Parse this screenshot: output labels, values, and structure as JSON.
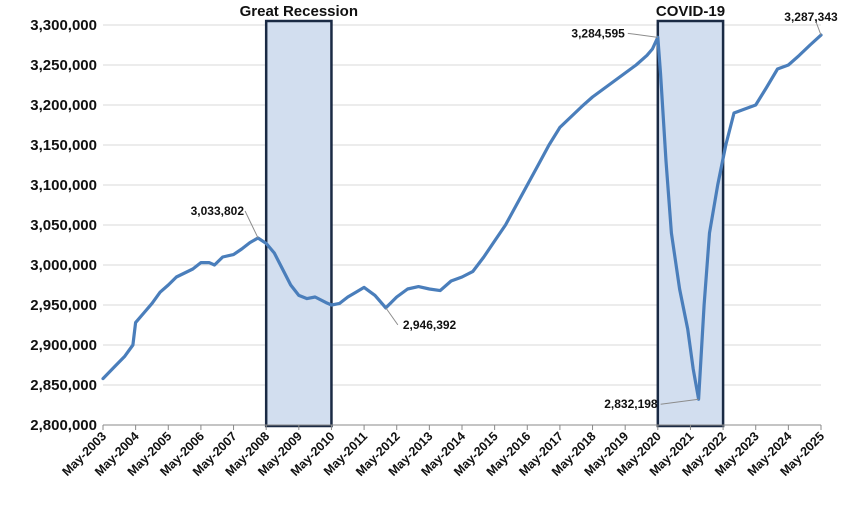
{
  "colors": {
    "line": "#4a7ebb",
    "region_fill": "#d2deef",
    "region_stroke": "#1a2a44",
    "grid": "#d9d9d9",
    "leader": "#8c8c8c"
  },
  "chart_data": {
    "type": "line",
    "title": "",
    "xlabel": "",
    "ylabel": "",
    "ylim": [
      2800000,
      3300000
    ],
    "y_ticks": [
      "2,800,000",
      "2,850,000",
      "2,900,000",
      "2,950,000",
      "3,000,000",
      "3,050,000",
      "3,100,000",
      "3,150,000",
      "3,200,000",
      "3,250,000",
      "3,300,000"
    ],
    "y_tick_values": [
      2800000,
      2850000,
      2900000,
      2950000,
      3000000,
      3050000,
      3100000,
      3150000,
      3200000,
      3250000,
      3300000
    ],
    "x_ticks": [
      "May-2003",
      "May-2004",
      "May-2005",
      "May-2006",
      "May-2007",
      "May-2008",
      "May-2009",
      "May-2010",
      "May-2011",
      "May-2012",
      "May-2013",
      "May-2014",
      "May-2015",
      "May-2016",
      "May-2017",
      "May-2018",
      "May-2019",
      "May-2020",
      "May-2021",
      "May-2022",
      "May-2023",
      "May-2024",
      "May-2025"
    ],
    "x_range": [
      "May-2003",
      "May-2025"
    ],
    "grid": "horizontal",
    "legend": "none",
    "series": [
      {
        "points": [
          [
            "2003-05",
            2858000
          ],
          [
            "2003-09",
            2872000
          ],
          [
            "2004-01",
            2886000
          ],
          [
            "2004-04",
            2900000
          ],
          [
            "2004-05",
            2928000
          ],
          [
            "2004-08",
            2940000
          ],
          [
            "2004-11",
            2952000
          ],
          [
            "2005-02",
            2966000
          ],
          [
            "2005-05",
            2975000
          ],
          [
            "2005-08",
            2985000
          ],
          [
            "2005-11",
            2990000
          ],
          [
            "2006-02",
            2995000
          ],
          [
            "2006-05",
            3003000
          ],
          [
            "2006-08",
            3003000
          ],
          [
            "2006-10",
            3000000
          ],
          [
            "2007-01",
            3010000
          ],
          [
            "2007-05",
            3013000
          ],
          [
            "2007-08",
            3020000
          ],
          [
            "2007-11",
            3028000
          ],
          [
            "2008-02",
            3033802
          ],
          [
            "2008-05",
            3027000
          ],
          [
            "2008-08",
            3015000
          ],
          [
            "2008-11",
            2995000
          ],
          [
            "2009-02",
            2975000
          ],
          [
            "2009-05",
            2962000
          ],
          [
            "2009-08",
            2958000
          ],
          [
            "2009-11",
            2960000
          ],
          [
            "2010-03",
            2953000
          ],
          [
            "2010-05",
            2950000
          ],
          [
            "2010-08",
            2952000
          ],
          [
            "2010-11",
            2960000
          ],
          [
            "2011-02",
            2966000
          ],
          [
            "2011-05",
            2972000
          ],
          [
            "2011-09",
            2962000
          ],
          [
            "2012-01",
            2946392
          ],
          [
            "2012-05",
            2960000
          ],
          [
            "2012-09",
            2970000
          ],
          [
            "2013-01",
            2973000
          ],
          [
            "2013-05",
            2970000
          ],
          [
            "2013-09",
            2968000
          ],
          [
            "2014-01",
            2980000
          ],
          [
            "2014-05",
            2985000
          ],
          [
            "2014-09",
            2992000
          ],
          [
            "2015-01",
            3010000
          ],
          [
            "2015-05",
            3030000
          ],
          [
            "2015-09",
            3050000
          ],
          [
            "2016-01",
            3075000
          ],
          [
            "2016-05",
            3100000
          ],
          [
            "2016-09",
            3125000
          ],
          [
            "2017-01",
            3150000
          ],
          [
            "2017-05",
            3172000
          ],
          [
            "2017-09",
            3185000
          ],
          [
            "2018-01",
            3198000
          ],
          [
            "2018-05",
            3210000
          ],
          [
            "2018-09",
            3220000
          ],
          [
            "2019-01",
            3230000
          ],
          [
            "2019-05",
            3240000
          ],
          [
            "2019-09",
            3250000
          ],
          [
            "2020-01",
            3262000
          ],
          [
            "2020-03",
            3270000
          ],
          [
            "2020-05",
            3284595
          ],
          [
            "2020-06",
            3240000
          ],
          [
            "2020-08",
            3130000
          ],
          [
            "2020-10",
            3040000
          ],
          [
            "2021-01",
            2970000
          ],
          [
            "2021-04",
            2920000
          ],
          [
            "2021-06",
            2870000
          ],
          [
            "2021-08",
            2832198
          ],
          [
            "2021-10",
            2950000
          ],
          [
            "2021-12",
            3040000
          ],
          [
            "2022-03",
            3100000
          ],
          [
            "2022-06",
            3150000
          ],
          [
            "2022-09",
            3190000
          ],
          [
            "2023-01",
            3195000
          ],
          [
            "2023-05",
            3200000
          ],
          [
            "2023-09",
            3222000
          ],
          [
            "2024-01",
            3245000
          ],
          [
            "2024-05",
            3250000
          ],
          [
            "2024-09",
            3262000
          ],
          [
            "2025-01",
            3275000
          ],
          [
            "2025-05",
            3287343
          ]
        ]
      }
    ],
    "shaded_regions": [
      {
        "label": "Great Recession",
        "start": "2008-05",
        "end": "2010-05"
      },
      {
        "label": "COVID-19",
        "start": "2020-05",
        "end": "2022-05"
      }
    ],
    "annotations": [
      {
        "text": "3,033,802",
        "x": "2008-02",
        "y": 3033802
      },
      {
        "text": "2,946,392",
        "x": "2012-01",
        "y": 2946392
      },
      {
        "text": "3,284,595",
        "x": "2020-05",
        "y": 3284595
      },
      {
        "text": "2,832,198",
        "x": "2021-08",
        "y": 2832198
      },
      {
        "text": "3,287,343",
        "x": "2025-05",
        "y": 3287343
      }
    ]
  }
}
